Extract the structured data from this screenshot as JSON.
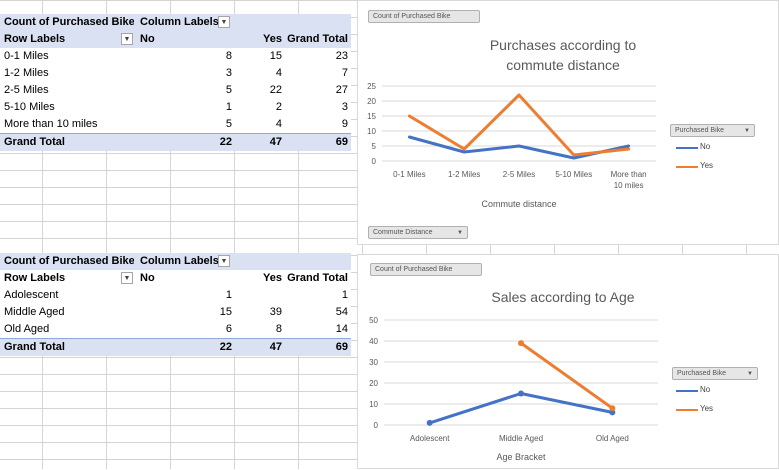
{
  "pivot1": {
    "corner": "Count of Purchased Bike",
    "column_labels": "Column Labels",
    "row_labels": "Row Labels",
    "col_no": "No",
    "col_yes": "Yes",
    "col_total": "Grand Total",
    "rows": [
      {
        "label": "0-1 Miles",
        "no": "8",
        "yes": "15",
        "total": "23"
      },
      {
        "label": "1-2 Miles",
        "no": "3",
        "yes": "4",
        "total": "7"
      },
      {
        "label": "2-5 Miles",
        "no": "5",
        "yes": "22",
        "total": "27"
      },
      {
        "label": "5-10 Miles",
        "no": "1",
        "yes": "2",
        "total": "3"
      },
      {
        "label": "More than 10 miles",
        "no": "5",
        "yes": "4",
        "total": "9"
      }
    ],
    "grand": {
      "label": "Grand Total",
      "no": "22",
      "yes": "47",
      "total": "69"
    }
  },
  "pivot2": {
    "corner": "Count of Purchased Bike",
    "column_labels": "Column Labels",
    "row_labels": "Row Labels",
    "col_no": "No",
    "col_yes": "Yes",
    "col_total": "Grand Total",
    "rows": [
      {
        "label": "Adolescent",
        "no": "1",
        "yes": "",
        "total": "1"
      },
      {
        "label": "Middle Aged",
        "no": "15",
        "yes": "39",
        "total": "54"
      },
      {
        "label": "Old Aged",
        "no": "6",
        "yes": "8",
        "total": "14"
      }
    ],
    "grand": {
      "label": "Grand Total",
      "no": "22",
      "yes": "47",
      "total": "69"
    }
  },
  "chart1_ui": {
    "value_field": "Count of Purchased Bike",
    "axis_field": "Commute Distance",
    "legend_field": "Purchased Bike"
  },
  "chart2_ui": {
    "value_field": "Count of Purchased Bike",
    "legend_field": "Purchased Bike"
  },
  "chart_data": [
    {
      "type": "line",
      "title": "Purchases according to commute distance",
      "title_lines": [
        "Purchases according to",
        "commute distance"
      ],
      "xlabel": "Commute distance",
      "ylabel": "",
      "categories": [
        "0-1 Miles",
        "1-2 Miles",
        "2-5 Miles",
        "5-10 Miles",
        "More than 10 miles"
      ],
      "category_lines": [
        [
          "0-1 Miles"
        ],
        [
          "1-2 Miles"
        ],
        [
          "2-5 Miles"
        ],
        [
          "5-10 Miles"
        ],
        [
          "More than",
          "10 miles"
        ]
      ],
      "yticks": [
        "0",
        "5",
        "10",
        "15",
        "20",
        "25"
      ],
      "ylim": [
        0,
        25
      ],
      "grid": true,
      "legend_position": "right",
      "series": [
        {
          "name": "No",
          "color": "#4472c4",
          "values": [
            8,
            3,
            5,
            1,
            5
          ]
        },
        {
          "name": "Yes",
          "color": "#ed7d31",
          "values": [
            15,
            4,
            22,
            2,
            4
          ]
        }
      ]
    },
    {
      "type": "line",
      "title": "Sales according to Age",
      "xlabel": "Age Bracket",
      "ylabel": "",
      "categories": [
        "Adolescent",
        "Middle Aged",
        "Old Aged"
      ],
      "yticks": [
        "0",
        "10",
        "20",
        "30",
        "40",
        "50"
      ],
      "ylim": [
        0,
        50
      ],
      "grid": true,
      "markers": true,
      "legend_position": "right",
      "series": [
        {
          "name": "No",
          "color": "#4472c4",
          "values": [
            1,
            15,
            6
          ]
        },
        {
          "name": "Yes",
          "color": "#ed7d31",
          "values": [
            null,
            39,
            8
          ]
        }
      ]
    }
  ]
}
